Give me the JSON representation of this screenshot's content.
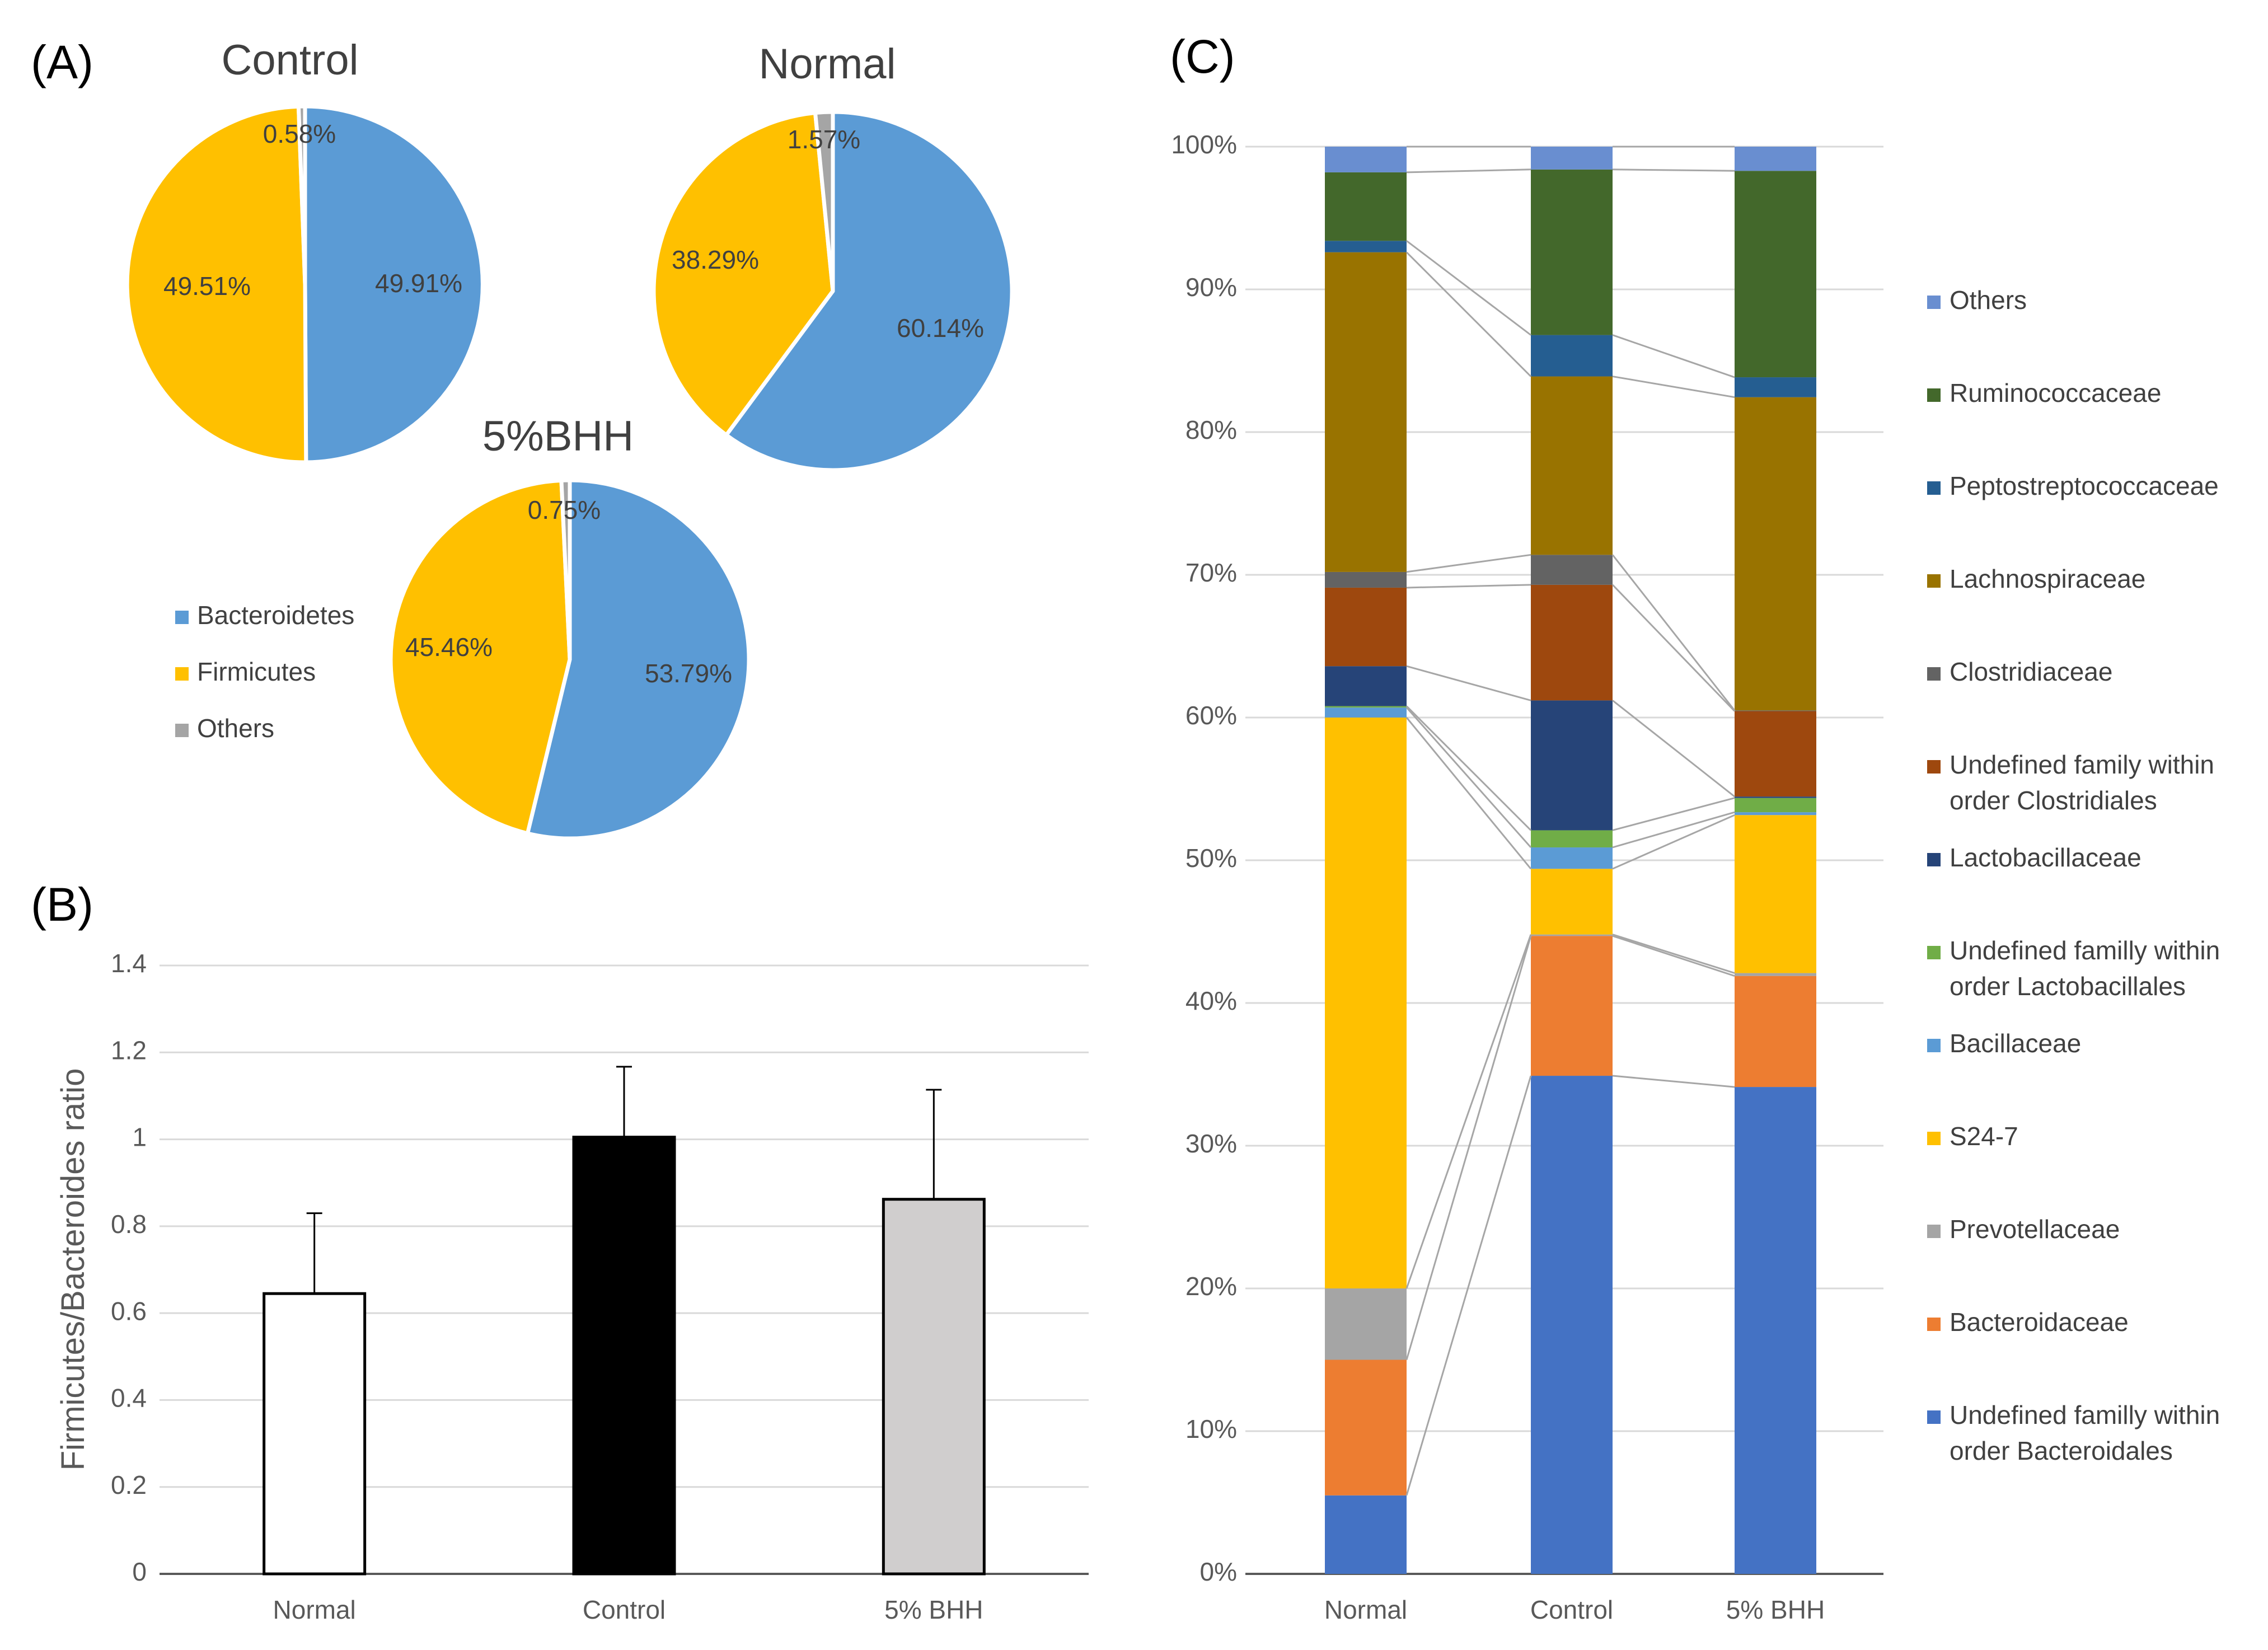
{
  "panels": {
    "a_label": "(A)",
    "b_label": "(B)",
    "c_label": "(C)"
  },
  "colors": {
    "bacteroidetes": "#5b9bd5",
    "firmicutes": "#ffc000",
    "others": "#a5a5a5",
    "grid": "#d9d9d9",
    "axis": "#595959",
    "connector": "#a6a6a6"
  },
  "chart_data": [
    {
      "id": "pies",
      "type": "pie",
      "legend": [
        {
          "key": "bacteroidetes",
          "label": "Bacteroidetes",
          "color": "#5b9bd5"
        },
        {
          "key": "firmicutes",
          "label": "Firmicutes",
          "color": "#ffc000"
        },
        {
          "key": "others",
          "label": "Others",
          "color": "#a5a5a5"
        }
      ],
      "pies": [
        {
          "title": "Control",
          "slices": [
            {
              "key": "bacteroidetes",
              "value": 49.91,
              "label": "49.91%"
            },
            {
              "key": "firmicutes",
              "value": 49.51,
              "label": "49.51%"
            },
            {
              "key": "others",
              "value": 0.58,
              "label": "0.58%"
            }
          ]
        },
        {
          "title": "Normal",
          "slices": [
            {
              "key": "bacteroidetes",
              "value": 60.14,
              "label": "60.14%"
            },
            {
              "key": "firmicutes",
              "value": 38.29,
              "label": "38.29%"
            },
            {
              "key": "others",
              "value": 1.57,
              "label": "1.57%"
            }
          ]
        },
        {
          "title": "5%BHH",
          "slices": [
            {
              "key": "bacteroidetes",
              "value": 53.79,
              "label": "53.79%"
            },
            {
              "key": "firmicutes",
              "value": 45.46,
              "label": "45.46%"
            },
            {
              "key": "others",
              "value": 0.75,
              "label": "0.75%"
            }
          ]
        }
      ]
    },
    {
      "id": "ratio",
      "type": "bar",
      "title": "",
      "xlabel": "",
      "ylabel": "Firmicutes/Bacteroides ratio",
      "ylim": [
        0,
        1.4
      ],
      "yticks": [
        0,
        0.2,
        0.4,
        0.6,
        0.8,
        1,
        1.2,
        1.4
      ],
      "ytick_labels": [
        "0",
        "0.2",
        "0.4",
        "0.6",
        "0.8",
        "1",
        "1.2",
        "1.4"
      ],
      "categories": [
        "Normal",
        "Control",
        "5% BHH"
      ],
      "values": [
        0.645,
        1.005,
        0.862
      ],
      "errors": [
        0.185,
        0.162,
        0.252
      ],
      "bar_colors": [
        "#ffffff",
        "#000000",
        "#d0cece"
      ],
      "grid": true
    },
    {
      "id": "family",
      "type": "bar",
      "stacked": true,
      "percent": true,
      "ylim": [
        0,
        100
      ],
      "yticks": [
        0,
        10,
        20,
        30,
        40,
        50,
        60,
        70,
        80,
        90,
        100
      ],
      "ytick_labels": [
        "0%",
        "10%",
        "20%",
        "30%",
        "40%",
        "50%",
        "60%",
        "70%",
        "80%",
        "90%",
        "100%"
      ],
      "categories": [
        "Normal",
        "Control",
        "5% BHH"
      ],
      "series": [
        {
          "name": "Undefined familly within order Bacteroidales",
          "color": "#4472c4",
          "values": [
            5.5,
            34.9,
            34.2
          ]
        },
        {
          "name": "Bacteroidaceae",
          "color": "#ed7d31",
          "values": [
            9.5,
            9.8,
            7.8
          ]
        },
        {
          "name": "Prevotellaceae",
          "color": "#a5a5a5",
          "values": [
            5.0,
            0.1,
            0.2
          ]
        },
        {
          "name": "S24-7",
          "color": "#ffc000",
          "values": [
            40.0,
            4.6,
            11.1
          ]
        },
        {
          "name": "Bacillaceae",
          "color": "#5b9bd5",
          "values": [
            0.7,
            1.5,
            0.2
          ]
        },
        {
          "name": "Undefined familly within order Lactobacillales",
          "color": "#70ad47",
          "values": [
            0.1,
            1.2,
            1.0
          ]
        },
        {
          "name": "Lactobacillaceae",
          "color": "#264478",
          "values": [
            2.8,
            9.1,
            0.1
          ]
        },
        {
          "name": "Undefined family within order Clostridiales",
          "color": "#9e480e",
          "values": [
            5.5,
            8.1,
            6.0
          ]
        },
        {
          "name": "Clostridiaceae",
          "color": "#636363",
          "values": [
            1.1,
            2.1,
            0.05
          ]
        },
        {
          "name": "Lachnospiraceae",
          "color": "#997300",
          "values": [
            22.4,
            12.5,
            22.0
          ]
        },
        {
          "name": "Peptostreptococcaceae",
          "color": "#255e91",
          "values": [
            0.8,
            2.9,
            1.4
          ]
        },
        {
          "name": "Ruminococcaceae",
          "color": "#43682b",
          "values": [
            4.8,
            11.6,
            14.5
          ]
        },
        {
          "name": "Others",
          "color": "#698ed0",
          "values": [
            1.8,
            1.6,
            1.7
          ]
        }
      ],
      "legend_order": [
        {
          "lines": [
            "Others"
          ],
          "color": "#698ed0"
        },
        {
          "lines": [
            "Ruminococcaceae"
          ],
          "color": "#43682b"
        },
        {
          "lines": [
            "Peptostreptococcaceae"
          ],
          "color": "#255e91"
        },
        {
          "lines": [
            "Lachnospiraceae"
          ],
          "color": "#997300"
        },
        {
          "lines": [
            "Clostridiaceae"
          ],
          "color": "#636363"
        },
        {
          "lines": [
            "Undefined family within",
            "order Clostridiales"
          ],
          "color": "#9e480e"
        },
        {
          "lines": [
            "Lactobacillaceae"
          ],
          "color": "#264478"
        },
        {
          "lines": [
            "Undefined familly within",
            "order Lactobacillales"
          ],
          "color": "#70ad47"
        },
        {
          "lines": [
            "Bacillaceae"
          ],
          "color": "#5b9bd5"
        },
        {
          "lines": [
            "S24-7"
          ],
          "color": "#ffc000"
        },
        {
          "lines": [
            "Prevotellaceae"
          ],
          "color": "#a5a5a5"
        },
        {
          "lines": [
            "Bacteroidaceae"
          ],
          "color": "#ed7d31"
        },
        {
          "lines": [
            "Undefined familly within",
            "order Bacteroidales"
          ],
          "color": "#4472c4"
        }
      ],
      "grid": true
    }
  ]
}
